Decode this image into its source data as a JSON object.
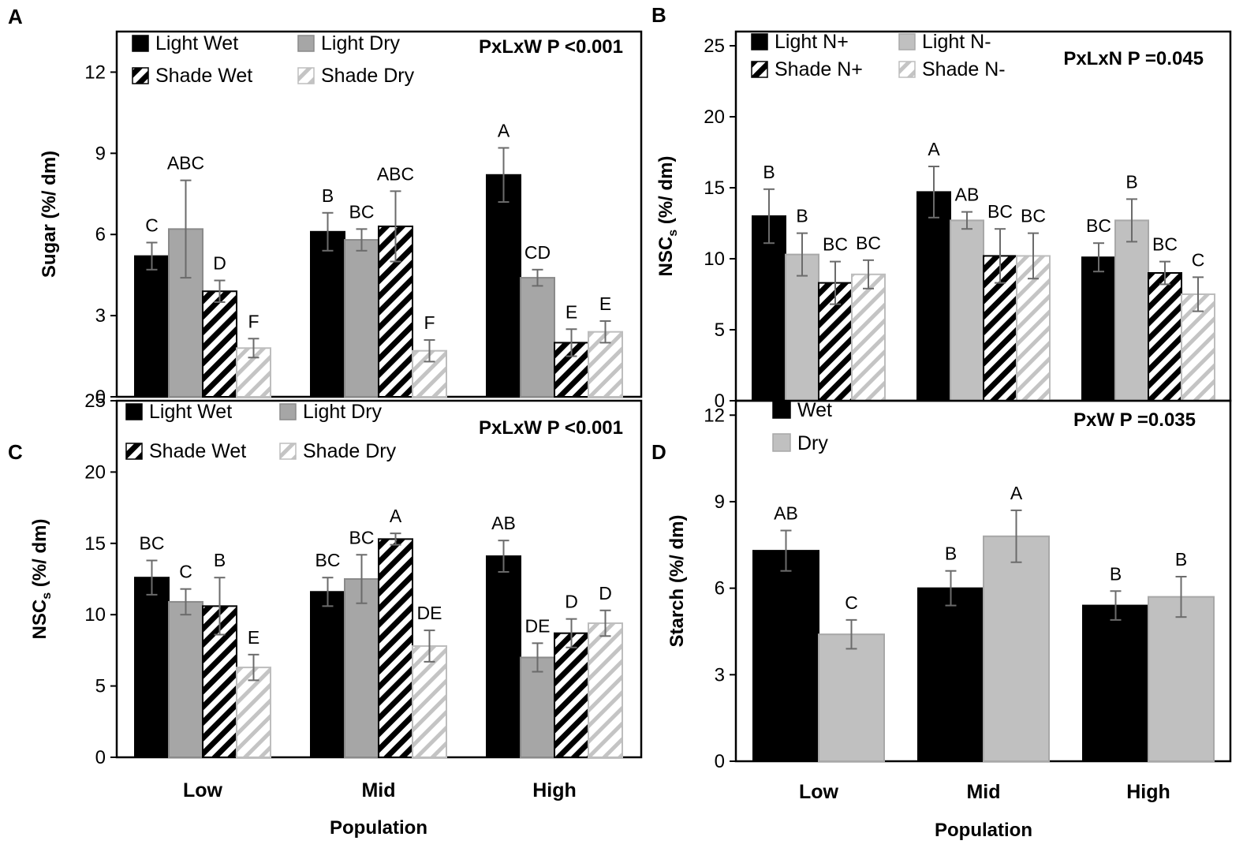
{
  "figure": {
    "categories": [
      "Low",
      "Mid",
      "High"
    ],
    "xlabel": "Population"
  },
  "chart_data": [
    {
      "panel": "A",
      "type": "bar",
      "ylabel": "Sugar (%/ dm)",
      "ylim": [
        0,
        13.5
      ],
      "yticks": [
        0,
        3,
        6,
        9,
        12
      ],
      "categories": [
        "Low",
        "Mid",
        "High"
      ],
      "stat": "PxLxW  P <0.001",
      "legend": [
        "Light Wet",
        "Light Dry",
        "Shade Wet",
        "Shade Dry"
      ],
      "series": [
        {
          "name": "Light Wet",
          "style": "solid-black",
          "values": [
            5.2,
            6.1,
            8.2
          ],
          "errors": [
            0.5,
            0.7,
            1.0
          ],
          "letters": [
            "C",
            "B",
            "A"
          ]
        },
        {
          "name": "Light Dry",
          "style": "solid-gray",
          "values": [
            6.2,
            5.8,
            4.4
          ],
          "errors": [
            1.8,
            0.4,
            0.3
          ],
          "letters": [
            "ABC",
            "BC",
            "CD"
          ]
        },
        {
          "name": "Shade Wet",
          "style": "hatch-black",
          "values": [
            3.9,
            6.3,
            2.0
          ],
          "errors": [
            0.4,
            1.3,
            0.5
          ],
          "letters": [
            "D",
            "ABC",
            "E"
          ]
        },
        {
          "name": "Shade Dry",
          "style": "hatch-light",
          "values": [
            1.8,
            1.7,
            2.4
          ],
          "errors": [
            0.35,
            0.4,
            0.4
          ],
          "letters": [
            "F",
            "F",
            "E"
          ]
        }
      ]
    },
    {
      "panel": "B",
      "type": "bar",
      "ylabel": "NSCs (%/ dm)",
      "ylabel_main": "NSC",
      "ylabel_sub": "s",
      "ylabel_rest": " (%/ dm)",
      "ylim": [
        0,
        26
      ],
      "yticks": [
        0,
        5,
        10,
        15,
        20,
        25
      ],
      "categories": [
        "Low",
        "Mid",
        "High"
      ],
      "stat": "PxLxN  P =0.045",
      "legend": [
        "Light N+",
        "Light N-",
        "Shade N+",
        "Shade N-"
      ],
      "series": [
        {
          "name": "Light N+",
          "style": "solid-black",
          "values": [
            13.0,
            14.7,
            10.1
          ],
          "errors": [
            1.9,
            1.8,
            1.0
          ],
          "letters": [
            "B",
            "A",
            "BC"
          ]
        },
        {
          "name": "Light N-",
          "style": "solid-lightgray",
          "values": [
            10.3,
            12.7,
            12.7
          ],
          "errors": [
            1.5,
            0.6,
            1.5
          ],
          "letters": [
            "B",
            "AB",
            "B"
          ]
        },
        {
          "name": "Shade N+",
          "style": "hatch-black",
          "values": [
            8.3,
            10.2,
            9.0
          ],
          "errors": [
            1.5,
            1.9,
            0.8
          ],
          "letters": [
            "BC",
            "BC",
            "BC"
          ]
        },
        {
          "name": "Shade N-",
          "style": "hatch-light",
          "values": [
            8.9,
            10.2,
            7.5
          ],
          "errors": [
            1.0,
            1.6,
            1.2
          ],
          "letters": [
            "BC",
            "BC",
            "C"
          ]
        }
      ]
    },
    {
      "panel": "C",
      "type": "bar",
      "ylabel": "NSCs (%/ dm)",
      "ylabel_main": "NSC",
      "ylabel_sub": "s",
      "ylabel_rest": " (%/ dm)",
      "ylim": [
        0,
        25
      ],
      "yticks": [
        0,
        5,
        10,
        15,
        20,
        25
      ],
      "categories": [
        "Low",
        "Mid",
        "High"
      ],
      "stat": "PxLxW  P <0.001",
      "legend": [
        "Light Wet",
        "Light Dry",
        "Shade Wet",
        "Shade Dry"
      ],
      "series": [
        {
          "name": "Light Wet",
          "style": "solid-black",
          "values": [
            12.6,
            11.6,
            14.1
          ],
          "errors": [
            1.2,
            1.0,
            1.1
          ],
          "letters": [
            "BC",
            "BC",
            "AB"
          ]
        },
        {
          "name": "Light Dry",
          "style": "solid-gray",
          "values": [
            10.9,
            12.5,
            7.0
          ],
          "errors": [
            0.9,
            1.7,
            1.0
          ],
          "letters": [
            "C",
            "BC",
            "DE"
          ]
        },
        {
          "name": "Shade Wet",
          "style": "hatch-black",
          "values": [
            10.6,
            15.3,
            8.7
          ],
          "errors": [
            2.0,
            0.4,
            1.0
          ],
          "letters": [
            "B",
            "A",
            "D"
          ]
        },
        {
          "name": "Shade Dry",
          "style": "hatch-light",
          "values": [
            6.3,
            7.8,
            9.4
          ],
          "errors": [
            0.9,
            1.1,
            0.9
          ],
          "letters": [
            "E",
            "DE",
            "D"
          ]
        }
      ]
    },
    {
      "panel": "D",
      "type": "bar",
      "ylabel": "Starch (%/ dm)",
      "ylim": [
        0,
        12.5
      ],
      "yticks": [
        0,
        3,
        6,
        9,
        12
      ],
      "categories": [
        "Low",
        "Mid",
        "High"
      ],
      "stat": "PxW  P =0.035",
      "legend": [
        "Wet",
        "Dry"
      ],
      "series": [
        {
          "name": "Wet",
          "style": "solid-black",
          "values": [
            7.3,
            6.0,
            5.4
          ],
          "errors": [
            0.7,
            0.6,
            0.5
          ],
          "letters": [
            "AB",
            "B",
            "B"
          ]
        },
        {
          "name": "Dry",
          "style": "solid-lightgray",
          "values": [
            4.4,
            7.8,
            5.7
          ],
          "errors": [
            0.5,
            0.9,
            0.7
          ],
          "letters": [
            "C",
            "A",
            "B"
          ]
        }
      ]
    }
  ]
}
